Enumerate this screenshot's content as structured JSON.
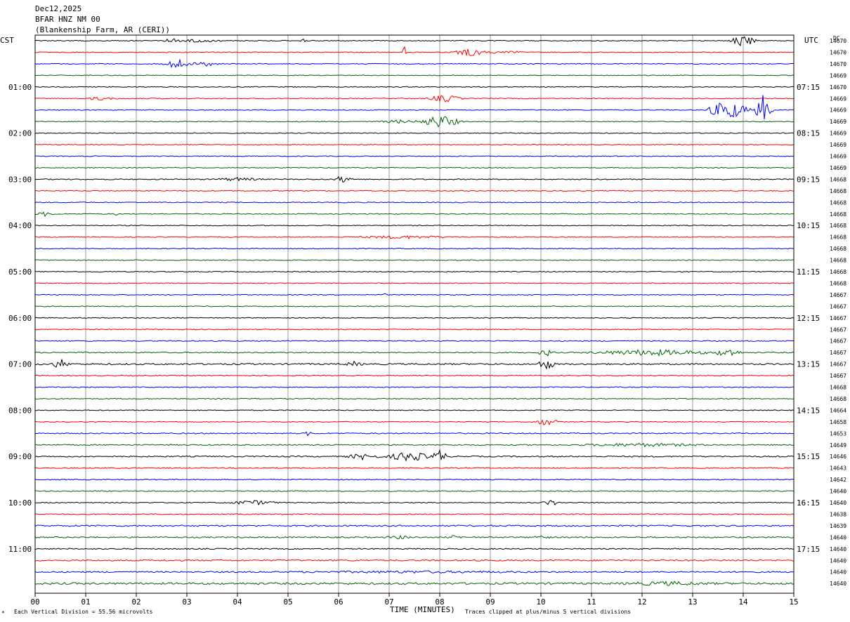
{
  "header": {
    "date": "Dec12,2025",
    "station": "BFAR HNZ NM 00",
    "site": "(Blankenship Farm, AR (CERI))"
  },
  "left_tz": "CST",
  "right_tz": "UTC",
  "dc_label": "DC",
  "footer": {
    "scale_text": "Each Vertical Division =   55.56 microvolts",
    "xlabel": "TIME (MINUTES)",
    "clip_text": "Traces clipped at plus/minus 5 vertical divisions"
  },
  "colors": {
    "trace_cycle": [
      "#000000",
      "#ff0000",
      "#0000ff",
      "#006400"
    ],
    "grid": "#999999",
    "frame": "#000000"
  },
  "chart_data": {
    "type": "line",
    "description_type": "helicorder",
    "xlabel": "TIME (MINUTES)",
    "xlim": [
      0,
      15
    ],
    "x_ticks": [
      "00",
      "01",
      "02",
      "03",
      "04",
      "05",
      "06",
      "07",
      "08",
      "09",
      "10",
      "11",
      "12",
      "13",
      "14",
      "15"
    ],
    "grid": true,
    "rows": 48,
    "minutes_per_row": 15,
    "left_hour_labels": [
      {
        "row": 4,
        "label": "01:00"
      },
      {
        "row": 8,
        "label": "02:00"
      },
      {
        "row": 12,
        "label": "03:00"
      },
      {
        "row": 16,
        "label": "04:00"
      },
      {
        "row": 20,
        "label": "05:00"
      },
      {
        "row": 24,
        "label": "06:00"
      },
      {
        "row": 28,
        "label": "07:00"
      },
      {
        "row": 32,
        "label": "08:00"
      },
      {
        "row": 36,
        "label": "09:00"
      },
      {
        "row": 40,
        "label": "10:00"
      },
      {
        "row": 44,
        "label": "11:00"
      }
    ],
    "right_hour_labels": [
      {
        "row": 4,
        "label": "07:15"
      },
      {
        "row": 8,
        "label": "08:15"
      },
      {
        "row": 12,
        "label": "09:15"
      },
      {
        "row": 16,
        "label": "10:15"
      },
      {
        "row": 20,
        "label": "11:15"
      },
      {
        "row": 24,
        "label": "12:15"
      },
      {
        "row": 28,
        "label": "13:15"
      },
      {
        "row": 32,
        "label": "14:15"
      },
      {
        "row": 36,
        "label": "15:15"
      },
      {
        "row": 40,
        "label": "16:15"
      },
      {
        "row": 44,
        "label": "17:15"
      }
    ],
    "dc_offsets": [
      "14670",
      "14670",
      "14670",
      "14669",
      "14670",
      "14669",
      "14669",
      "14669",
      "14669",
      "14669",
      "14669",
      "14669",
      "14668",
      "14668",
      "14668",
      "14668",
      "14668",
      "14668",
      "14668",
      "14668",
      "14668",
      "14668",
      "14667",
      "14667",
      "14667",
      "14667",
      "14667",
      "14667",
      "14667",
      "14667",
      "14668",
      "14668",
      "14664",
      "14658",
      "14653",
      "14649",
      "14646",
      "14643",
      "14642",
      "14640",
      "14640",
      "14638",
      "14639",
      "14640",
      "14640",
      "14640",
      "14640",
      "14640"
    ],
    "base_noise": [
      0.6,
      0.6,
      0.6,
      0.5,
      0.6,
      0.6,
      0.6,
      0.6,
      0.6,
      0.6,
      0.6,
      0.6,
      0.7,
      0.6,
      0.6,
      0.6,
      0.6,
      0.6,
      0.6,
      0.6,
      0.6,
      0.6,
      0.6,
      0.6,
      0.6,
      0.6,
      0.7,
      0.8,
      1.1,
      0.7,
      0.6,
      0.6,
      0.6,
      0.6,
      0.8,
      0.8,
      0.9,
      0.7,
      0.7,
      0.7,
      0.7,
      0.7,
      1.0,
      0.9,
      0.8,
      1.0,
      1.0,
      1.4
    ],
    "events": [
      {
        "row": 0,
        "minute": 2.7,
        "amp": 3,
        "dur": 0.2
      },
      {
        "row": 0,
        "minute": 3.3,
        "amp": 2,
        "dur": 0.5
      },
      {
        "row": 0,
        "minute": 5.3,
        "amp": 2,
        "dur": 0.1
      },
      {
        "row": 0,
        "minute": 14.0,
        "amp": 9,
        "dur": 0.3
      },
      {
        "row": 1,
        "minute": 7.3,
        "amp": 14,
        "dur": 0.05
      },
      {
        "row": 1,
        "minute": 8.6,
        "amp": 5,
        "dur": 0.4
      },
      {
        "row": 1,
        "minute": 9.3,
        "amp": 2,
        "dur": 0.5
      },
      {
        "row": 2,
        "minute": 2.8,
        "amp": 8,
        "dur": 0.3
      },
      {
        "row": 2,
        "minute": 3.4,
        "amp": 3,
        "dur": 0.4
      },
      {
        "row": 5,
        "minute": 1.3,
        "amp": 2,
        "dur": 0.4
      },
      {
        "row": 5,
        "minute": 8.1,
        "amp": 5,
        "dur": 0.4
      },
      {
        "row": 6,
        "minute": 13.7,
        "amp": 14,
        "dur": 0.5
      },
      {
        "row": 6,
        "minute": 14.4,
        "amp": 22,
        "dur": 0.2
      },
      {
        "row": 7,
        "minute": 8.0,
        "amp": 9,
        "dur": 0.5
      },
      {
        "row": 7,
        "minute": 7.2,
        "amp": 2,
        "dur": 0.5
      },
      {
        "row": 12,
        "minute": 4.0,
        "amp": 2,
        "dur": 0.6
      },
      {
        "row": 12,
        "minute": 6.1,
        "amp": 6,
        "dur": 0.2
      },
      {
        "row": 15,
        "minute": 0.2,
        "amp": 3,
        "dur": 0.2
      },
      {
        "row": 15,
        "minute": 1.6,
        "amp": 2,
        "dur": 0.05
      },
      {
        "row": 17,
        "minute": 7.3,
        "amp": 2,
        "dur": 1.2
      },
      {
        "row": 22,
        "minute": 6.9,
        "amp": 2,
        "dur": 0.05
      },
      {
        "row": 27,
        "minute": 10.1,
        "amp": 5,
        "dur": 0.2
      },
      {
        "row": 27,
        "minute": 12.2,
        "amp": 4,
        "dur": 1.5
      },
      {
        "row": 27,
        "minute": 13.7,
        "amp": 6,
        "dur": 0.3
      },
      {
        "row": 28,
        "minute": 0.5,
        "amp": 7,
        "dur": 0.2
      },
      {
        "row": 28,
        "minute": 6.3,
        "amp": 3,
        "dur": 0.2
      },
      {
        "row": 28,
        "minute": 10.1,
        "amp": 8,
        "dur": 0.2
      },
      {
        "row": 33,
        "minute": 10.1,
        "amp": 5,
        "dur": 0.3
      },
      {
        "row": 34,
        "minute": 5.4,
        "amp": 3,
        "dur": 0.1
      },
      {
        "row": 35,
        "minute": 12.0,
        "amp": 2,
        "dur": 1.5
      },
      {
        "row": 36,
        "minute": 6.5,
        "amp": 4,
        "dur": 0.4
      },
      {
        "row": 36,
        "minute": 7.4,
        "amp": 7,
        "dur": 0.5
      },
      {
        "row": 36,
        "minute": 8.0,
        "amp": 9,
        "dur": 0.2
      },
      {
        "row": 40,
        "minute": 4.3,
        "amp": 3,
        "dur": 0.6
      },
      {
        "row": 40,
        "minute": 10.2,
        "amp": 4,
        "dur": 0.2
      },
      {
        "row": 43,
        "minute": 7.2,
        "amp": 2,
        "dur": 0.3
      },
      {
        "row": 43,
        "minute": 8.3,
        "amp": 2,
        "dur": 0.2
      },
      {
        "row": 43,
        "minute": 10.0,
        "amp": 3,
        "dur": 0.2
      },
      {
        "row": 46,
        "minute": 7.5,
        "amp": 1,
        "dur": 3.0
      },
      {
        "row": 47,
        "minute": 12.5,
        "amp": 2,
        "dur": 1.0
      }
    ]
  }
}
